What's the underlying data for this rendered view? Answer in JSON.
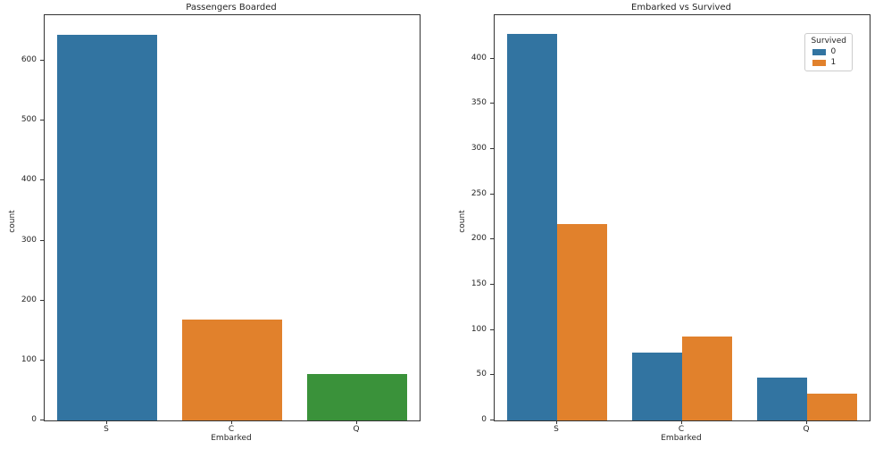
{
  "figure": {
    "background": "#ffffff",
    "text_color": "#262626",
    "spine_color": "#333333"
  },
  "chart_data": [
    {
      "type": "bar",
      "title": "Passengers Boarded",
      "xlabel": "Embarked",
      "ylabel": "count",
      "categories": [
        "S",
        "C",
        "Q"
      ],
      "values": [
        644,
        168,
        77
      ],
      "bar_colors": [
        "#3274a1",
        "#e1812c",
        "#3a923a"
      ],
      "ylim": [
        0,
        676
      ],
      "yticks": [
        0,
        100,
        200,
        300,
        400,
        500,
        600
      ],
      "grid": false,
      "legend": null
    },
    {
      "type": "bar",
      "title": "Embarked vs Survived",
      "xlabel": "Embarked",
      "ylabel": "count",
      "categories": [
        "S",
        "C",
        "Q"
      ],
      "series": [
        {
          "name": "0",
          "values": [
            427,
            75,
            47
          ],
          "color": "#3274a1"
        },
        {
          "name": "1",
          "values": [
            217,
            93,
            30
          ],
          "color": "#e1812c"
        }
      ],
      "ylim": [
        0,
        448
      ],
      "yticks": [
        0,
        50,
        100,
        150,
        200,
        250,
        300,
        350,
        400
      ],
      "grid": false,
      "legend": {
        "title": "Survived",
        "position": "upper right",
        "entries": [
          "0",
          "1"
        ]
      }
    }
  ]
}
